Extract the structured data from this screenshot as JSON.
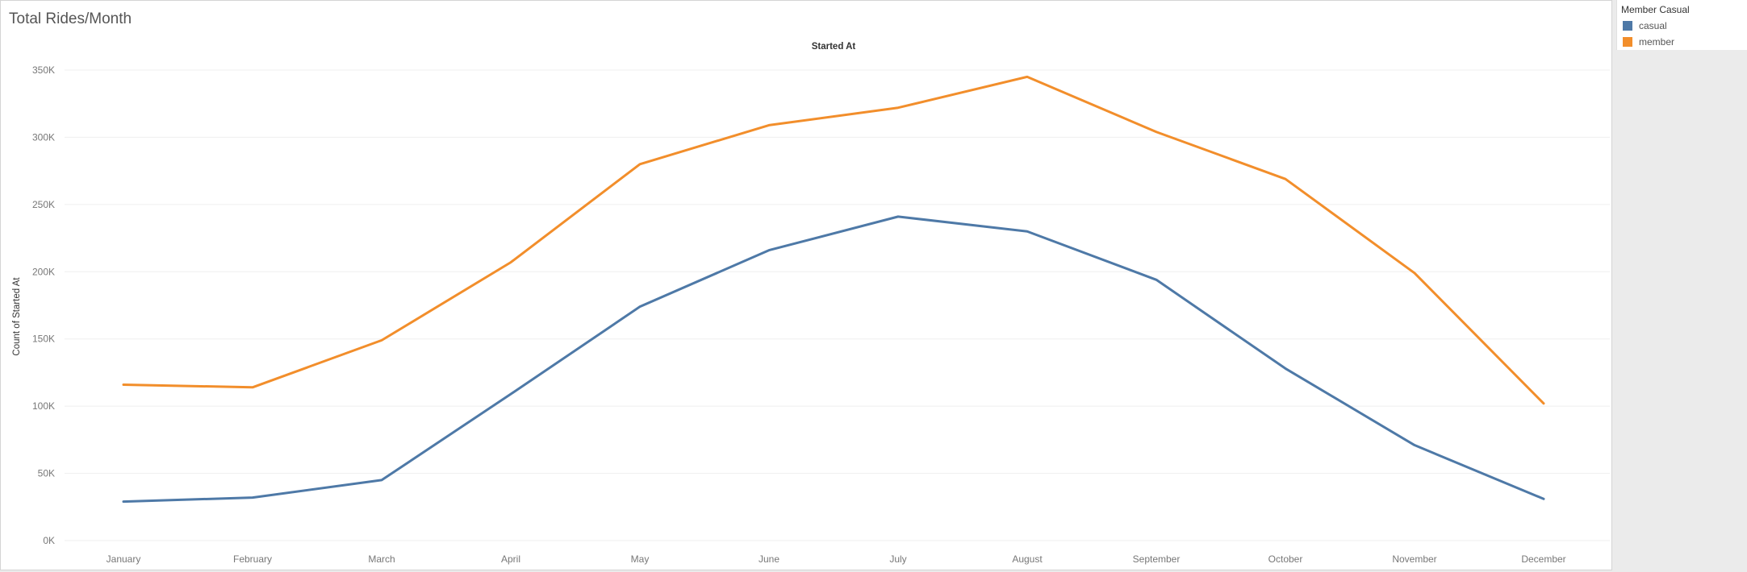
{
  "sheet": {
    "title": "Total Rides/Month"
  },
  "legend": {
    "title": "Member Casual",
    "items": [
      {
        "label": "casual",
        "color": "#4e79a7"
      },
      {
        "label": "member",
        "color": "#f28e2b"
      }
    ]
  },
  "chart_data": {
    "type": "line",
    "title": "Started At",
    "xlabel": "",
    "ylabel": "Count of Started At",
    "categories": [
      "January",
      "February",
      "March",
      "April",
      "May",
      "June",
      "July",
      "August",
      "September",
      "October",
      "November",
      "December"
    ],
    "ylim": [
      0,
      350000
    ],
    "yticks": [
      0,
      50000,
      100000,
      150000,
      200000,
      250000,
      300000,
      350000
    ],
    "ytick_labels": [
      "0K",
      "50K",
      "100K",
      "150K",
      "200K",
      "250K",
      "300K",
      "350K"
    ],
    "grid": true,
    "legend_position": "top-right",
    "series": [
      {
        "name": "casual",
        "color": "#4e79a7",
        "values": [
          29000,
          32000,
          45000,
          109000,
          174000,
          216000,
          241000,
          230000,
          194000,
          128000,
          71000,
          31000
        ]
      },
      {
        "name": "member",
        "color": "#f28e2b",
        "values": [
          116000,
          114000,
          149000,
          207000,
          280000,
          309000,
          322000,
          345000,
          304000,
          269000,
          199000,
          102000
        ]
      }
    ]
  }
}
